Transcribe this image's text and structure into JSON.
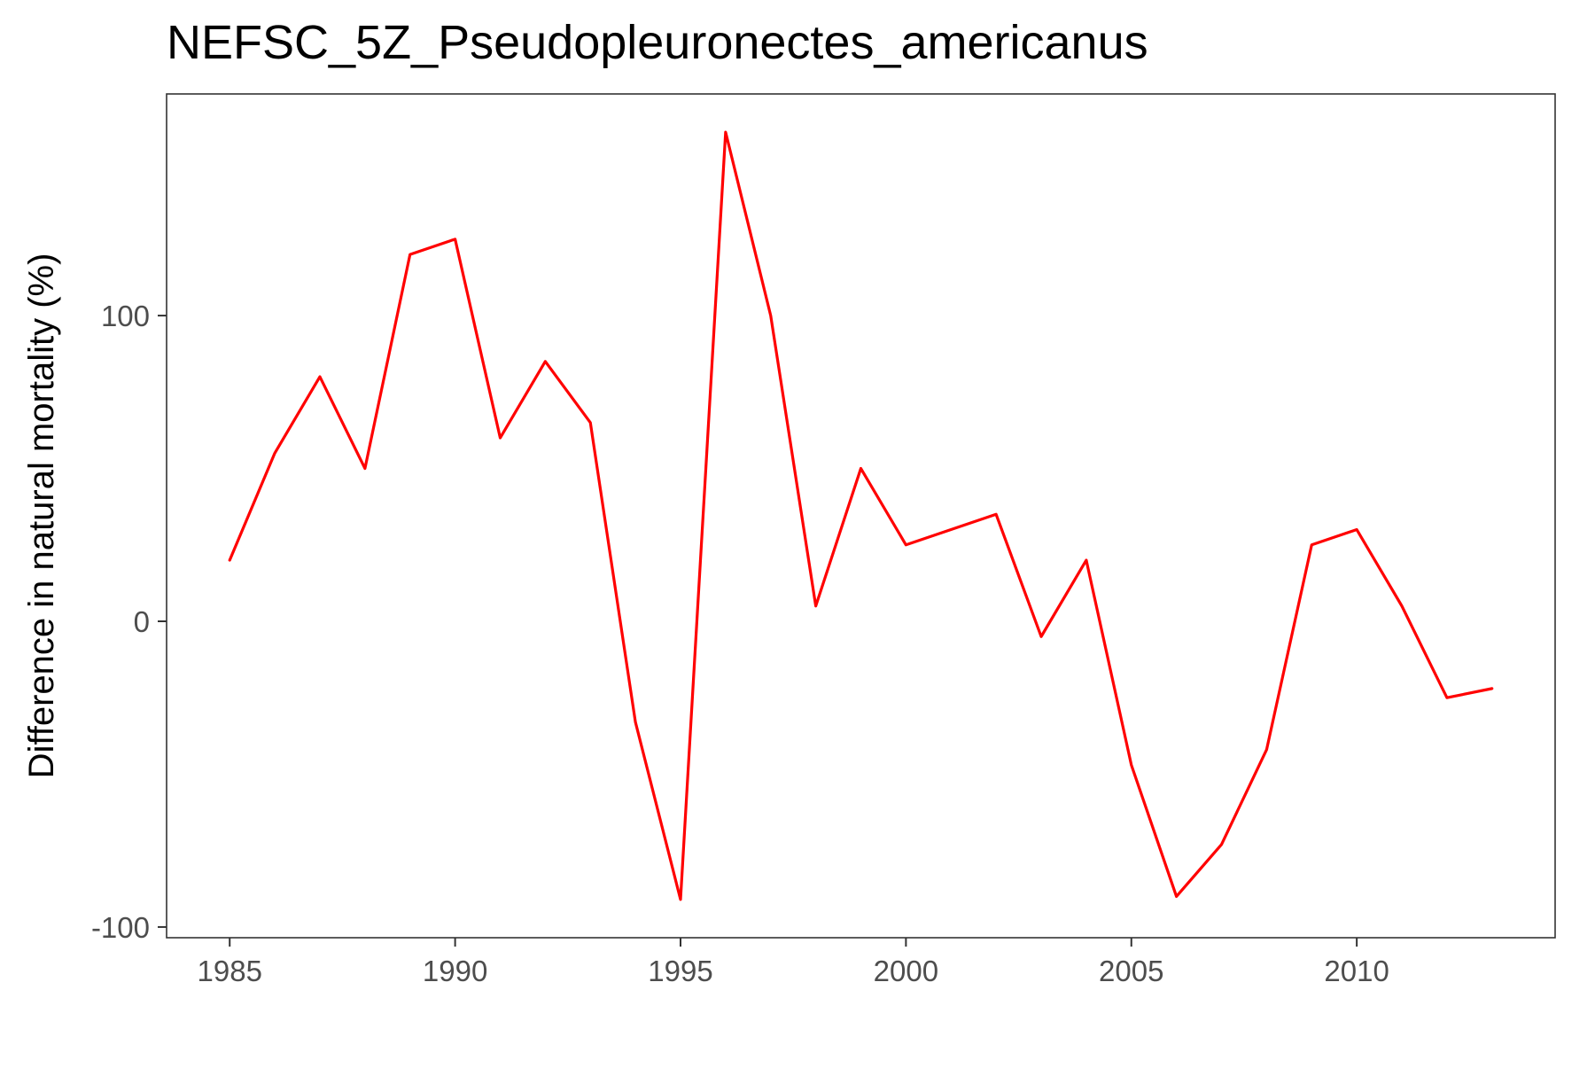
{
  "chart_data": {
    "type": "line",
    "title": "NEFSC_5Z_Pseudopleuronectes_americanus",
    "xlabel": "",
    "ylabel": "Difference in natural mortality (%)",
    "x": [
      1985,
      1986,
      1987,
      1988,
      1989,
      1990,
      1991,
      1992,
      1993,
      1994,
      1995,
      1996,
      1997,
      1998,
      1999,
      2000,
      2001,
      2002,
      2003,
      2004,
      2005,
      2006,
      2007,
      2008,
      2009,
      2010,
      2011,
      2012,
      2013
    ],
    "series": [
      {
        "name": "",
        "color": "#ff0000",
        "values": [
          20,
          55,
          80,
          50,
          120,
          125,
          60,
          85,
          65,
          -33,
          -91,
          160,
          100,
          5,
          50,
          25,
          30,
          35,
          -5,
          20,
          -47,
          -90,
          -73,
          -42,
          25,
          30,
          5,
          -25,
          -22
        ]
      }
    ],
    "x_ticks": [
      1985,
      1990,
      1995,
      2000,
      2005,
      2010
    ],
    "x_tick_labels": [
      "1985",
      "1990",
      "1995",
      "2000",
      "2005",
      "2010"
    ],
    "y_ticks": [
      -100,
      0,
      100
    ],
    "y_tick_labels": [
      "-100",
      "0",
      "100"
    ],
    "xlim": [
      1983.6,
      2014.4
    ],
    "ylim": [
      -103.5,
      172.5
    ],
    "grid": false,
    "legend": "none",
    "background": "#ffffff"
  }
}
